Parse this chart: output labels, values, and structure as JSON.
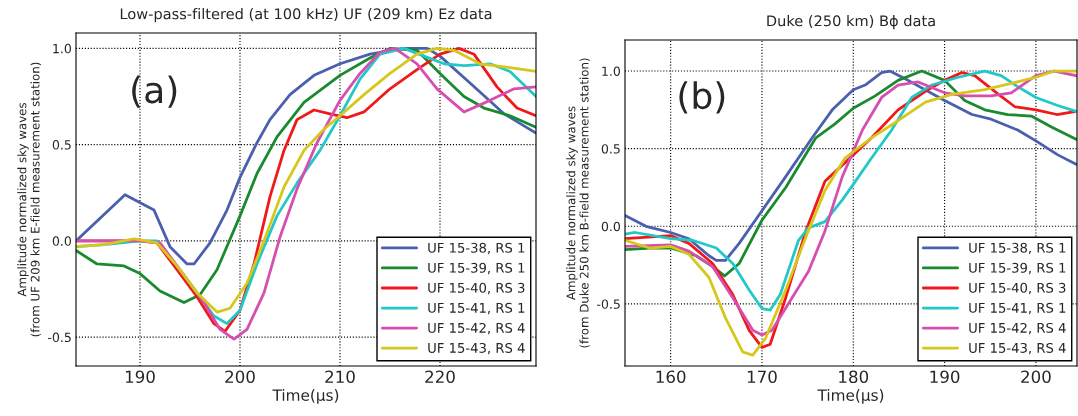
{
  "chart_data": [
    {
      "type": "line",
      "title": "Low-pass-filtered (at 100 kHz) UF (209 km) Ez data",
      "xlabel": "Time(µs)",
      "ylabel": "Amplitude normalized sky waves\n(from UF 209 km E-field measurement station)",
      "annotations": [
        "(a)"
      ],
      "xlim": [
        183.6,
        229.6
      ],
      "ylim": [
        -0.65,
        1.08
      ],
      "xticks": [
        190,
        200,
        210,
        220
      ],
      "yticks": [
        {
          "value": -0.5,
          "label": "-0.5"
        },
        {
          "value": 0,
          "label": "0.0"
        },
        {
          "value": 0.5,
          "label": "0.5"
        },
        {
          "value": 1,
          "label": "1.0"
        }
      ],
      "grid": true,
      "legend": "bottom right",
      "line_style": "solid",
      "series": [
        {
          "name": "UF 15-38, RS 1",
          "color": "#4a5fae",
          "x": [
            183.6,
            188.5,
            191.4,
            193.0,
            194.7,
            195.4,
            197.0,
            198.7,
            200.0,
            201.7,
            203.0,
            205.0,
            207.4,
            210.0,
            213.0,
            216.4,
            218.7,
            220.0,
            223.0,
            226.4,
            229.6
          ],
          "values": [
            0.0,
            0.24,
            0.16,
            -0.03,
            -0.12,
            -0.12,
            -0.01,
            0.16,
            0.33,
            0.51,
            0.63,
            0.76,
            0.86,
            0.92,
            0.97,
            1.0,
            1.0,
            0.96,
            0.82,
            0.66,
            0.56
          ]
        },
        {
          "name": "UF 15-39, RS 1",
          "color": "#1a8a2e",
          "x": [
            183.6,
            185.7,
            188.4,
            190.0,
            192.0,
            194.4,
            196.0,
            197.7,
            200.0,
            201.7,
            203.7,
            206.4,
            210.0,
            213.0,
            215.0,
            217.7,
            220.0,
            222.4,
            224.4,
            227.0,
            229.6
          ],
          "values": [
            -0.05,
            -0.12,
            -0.13,
            -0.17,
            -0.26,
            -0.32,
            -0.28,
            -0.15,
            0.13,
            0.35,
            0.54,
            0.72,
            0.86,
            0.95,
            1.0,
            0.99,
            0.87,
            0.75,
            0.69,
            0.65,
            0.59
          ]
        },
        {
          "name": "UF 15-40, RS 3",
          "color": "#f01818",
          "x": [
            183.6,
            190.0,
            191.7,
            193.7,
            195.7,
            197.4,
            198.5,
            200.0,
            201.4,
            203.0,
            204.4,
            205.7,
            207.4,
            209.0,
            210.7,
            212.4,
            215.0,
            217.7,
            220.0,
            221.9,
            223.4,
            225.7,
            227.7,
            229.6
          ],
          "values": [
            0.0,
            0.0,
            -0.01,
            -0.15,
            -0.29,
            -0.43,
            -0.47,
            -0.36,
            -0.12,
            0.23,
            0.47,
            0.63,
            0.68,
            0.66,
            0.64,
            0.67,
            0.79,
            0.89,
            0.97,
            1.0,
            0.97,
            0.8,
            0.69,
            0.65
          ]
        },
        {
          "name": "UF 15-41, RS 1",
          "color": "#22c8c8",
          "x": [
            183.6,
            186.4,
            190.0,
            191.7,
            193.7,
            195.7,
            197.4,
            198.7,
            200.0,
            201.7,
            203.7,
            205.7,
            208.0,
            210.0,
            212.0,
            214.0,
            216.4,
            218.4,
            220.4,
            222.4,
            225.0,
            227.0,
            229.6
          ],
          "values": [
            -0.03,
            -0.02,
            0.0,
            0.0,
            -0.13,
            -0.27,
            -0.39,
            -0.43,
            -0.36,
            -0.12,
            0.13,
            0.3,
            0.47,
            0.65,
            0.84,
            0.97,
            1.0,
            0.96,
            0.92,
            0.91,
            0.92,
            0.88,
            0.75
          ]
        },
        {
          "name": "UF 15-42, RS 4",
          "color": "#d64fb0",
          "x": [
            183.6,
            190.0,
            192.0,
            194.0,
            196.4,
            198.0,
            199.4,
            200.7,
            202.4,
            204.0,
            205.7,
            207.7,
            210.0,
            212.0,
            214.0,
            215.5,
            217.7,
            219.7,
            222.4,
            225.0,
            227.4,
            229.6
          ],
          "values": [
            0.0,
            0.0,
            -0.01,
            -0.15,
            -0.32,
            -0.46,
            -0.51,
            -0.46,
            -0.27,
            0.02,
            0.27,
            0.51,
            0.73,
            0.87,
            0.98,
            1.0,
            0.92,
            0.79,
            0.67,
            0.73,
            0.79,
            0.8
          ]
        },
        {
          "name": "UF 15-43, RS 4",
          "color": "#d6c81a",
          "x": [
            183.6,
            186.4,
            189.4,
            191.7,
            193.7,
            195.7,
            197.7,
            199.0,
            200.7,
            202.4,
            204.4,
            206.4,
            208.4,
            210.0,
            212.4,
            215.0,
            217.7,
            219.7,
            221.4,
            224.0,
            227.0,
            229.6
          ],
          "values": [
            -0.03,
            -0.02,
            0.01,
            -0.01,
            -0.13,
            -0.27,
            -0.37,
            -0.35,
            -0.22,
            0.0,
            0.28,
            0.47,
            0.58,
            0.65,
            0.76,
            0.87,
            0.97,
            1.0,
            0.99,
            0.92,
            0.9,
            0.88
          ]
        }
      ]
    },
    {
      "type": "line",
      "title": "Duke (250 km) Bϕ data",
      "xlabel": "Time(µs)",
      "ylabel": "Amplitude normalized sky waves\n(from Duke 250 km B-field measurement station)",
      "annotations": [
        "(b)"
      ],
      "xlim": [
        155,
        204.5
      ],
      "ylim": [
        -0.9,
        1.2
      ],
      "xticks": [
        160,
        170,
        180,
        190,
        200
      ],
      "yticks": [
        {
          "value": -0.5,
          "label": "-0.5"
        },
        {
          "value": 0,
          "label": "0.0"
        },
        {
          "value": 0.5,
          "label": "0.5"
        },
        {
          "value": 1,
          "label": "1.0"
        }
      ],
      "grid": true,
      "legend": "bottom right",
      "line_style": "solid",
      "series": [
        {
          "name": "UF 15-38, RS 1",
          "color": "#4a5fae",
          "x": [
            155.0,
            157.3,
            160.0,
            162.0,
            164.2,
            165.0,
            166.0,
            167.5,
            170.0,
            172.6,
            175.5,
            177.7,
            180.0,
            181.3,
            183.1,
            184.0,
            186.0,
            190.0,
            193.0,
            195.1,
            198.0,
            200.0,
            202.4,
            204.4
          ],
          "values": [
            0.07,
            0.0,
            -0.04,
            -0.08,
            -0.19,
            -0.22,
            -0.22,
            -0.11,
            0.1,
            0.32,
            0.57,
            0.75,
            0.88,
            0.91,
            0.99,
            1.0,
            0.94,
            0.81,
            0.72,
            0.69,
            0.62,
            0.55,
            0.46,
            0.4
          ]
        },
        {
          "name": "UF 15-39, RS 1",
          "color": "#1a8a2e",
          "x": [
            155.0,
            157.7,
            160.0,
            162.8,
            164.6,
            165.9,
            167.5,
            170.0,
            172.6,
            175.9,
            178.0,
            180.0,
            182.4,
            184.9,
            187.5,
            190.0,
            192.2,
            194.4,
            196.9,
            199.5,
            201.7,
            204.4
          ],
          "values": [
            -0.15,
            -0.14,
            -0.14,
            -0.19,
            -0.26,
            -0.32,
            -0.24,
            0.04,
            0.25,
            0.57,
            0.66,
            0.76,
            0.84,
            0.94,
            1.0,
            0.94,
            0.81,
            0.75,
            0.72,
            0.71,
            0.64,
            0.56
          ]
        },
        {
          "name": "UF 15-40, RS 3",
          "color": "#f01818",
          "x": [
            155.0,
            160.0,
            162.0,
            164.6,
            166.8,
            168.6,
            170.0,
            170.9,
            172.6,
            174.8,
            176.9,
            180.0,
            182.0,
            184.9,
            187.9,
            190.0,
            191.9,
            193.3,
            195.9,
            197.7,
            200.0,
            202.3,
            204.4
          ],
          "values": [
            -0.08,
            -0.06,
            -0.11,
            -0.24,
            -0.44,
            -0.67,
            -0.78,
            -0.76,
            -0.46,
            -0.03,
            0.29,
            0.46,
            0.57,
            0.75,
            0.87,
            0.94,
            0.99,
            0.97,
            0.85,
            0.77,
            0.75,
            0.72,
            0.74
          ]
        },
        {
          "name": "UF 15-41, RS 1",
          "color": "#22c8c8",
          "x": [
            155.0,
            156.1,
            160.0,
            162.4,
            165.0,
            166.8,
            168.6,
            170.0,
            170.9,
            172.0,
            174.0,
            175.1,
            176.9,
            178.8,
            180.0,
            182.0,
            184.2,
            186.4,
            188.6,
            191.5,
            194.4,
            196.2,
            198.0,
            200.0,
            202.3,
            204.4
          ],
          "values": [
            -0.05,
            -0.04,
            -0.08,
            -0.09,
            -0.14,
            -0.24,
            -0.41,
            -0.53,
            -0.54,
            -0.44,
            -0.09,
            -0.01,
            0.03,
            0.17,
            0.27,
            0.44,
            0.62,
            0.83,
            0.91,
            0.96,
            1.0,
            0.97,
            0.9,
            0.83,
            0.78,
            0.74
          ]
        },
        {
          "name": "UF 15-42, RS 4",
          "color": "#d64fb0",
          "x": [
            155.0,
            160.0,
            162.0,
            164.6,
            166.8,
            169.0,
            170.0,
            171.1,
            173.3,
            175.1,
            176.9,
            178.8,
            181.0,
            183.1,
            184.9,
            187.1,
            190.0,
            192.2,
            195.1,
            197.3,
            200.0,
            202.0,
            204.4
          ],
          "values": [
            -0.13,
            -0.12,
            -0.16,
            -0.26,
            -0.46,
            -0.67,
            -0.7,
            -0.67,
            -0.46,
            -0.29,
            -0.03,
            0.32,
            0.62,
            0.83,
            0.91,
            0.93,
            0.86,
            0.84,
            0.84,
            0.86,
            0.97,
            1.0,
            0.97
          ]
        },
        {
          "name": "UF 15-43, RS 4",
          "color": "#d6c81a",
          "x": [
            155.0,
            157.7,
            160.0,
            162.0,
            164.2,
            166.0,
            167.9,
            169.0,
            170.4,
            172.6,
            174.8,
            176.9,
            179.1,
            182.0,
            184.9,
            187.9,
            190.8,
            194.4,
            197.3,
            200.0,
            202.0,
            204.4
          ],
          "values": [
            -0.09,
            -0.14,
            -0.13,
            -0.18,
            -0.33,
            -0.59,
            -0.81,
            -0.83,
            -0.72,
            -0.41,
            -0.07,
            0.23,
            0.44,
            0.57,
            0.68,
            0.8,
            0.85,
            0.88,
            0.92,
            0.96,
            1.0,
            1.0
          ]
        }
      ]
    }
  ]
}
